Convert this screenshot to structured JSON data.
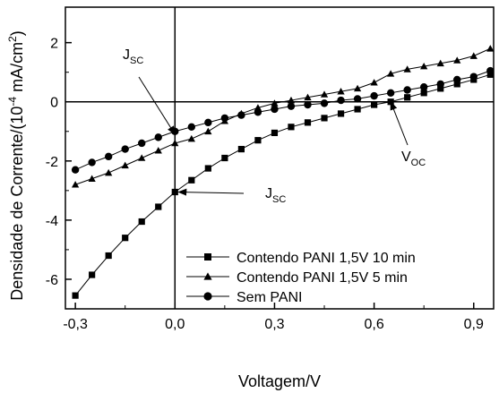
{
  "chart_data": {
    "type": "line",
    "xlabel": "Voltagem/V",
    "ylabel_parts": {
      "main": "Densidade de Corrente/(10",
      "exp": "-4",
      "unit": " mA/cm",
      "unit_exp": "2",
      "close": ")"
    },
    "xlim": [
      -0.33,
      0.96
    ],
    "ylim": [
      -7.0,
      3.2
    ],
    "x_ticks": [
      -0.3,
      0.0,
      0.3,
      0.6,
      0.9
    ],
    "x_tick_labels": [
      "-0,3",
      "0,0",
      "0,3",
      "0,6",
      "0,9"
    ],
    "y_ticks": [
      -6,
      -4,
      -2,
      0,
      2
    ],
    "y_tick_labels": [
      "-6",
      "-4",
      "-2",
      "0",
      "2"
    ],
    "legend_position": "bottom-right",
    "series": [
      {
        "name": "Contendo PANI 1,5V 10 min",
        "marker": "square",
        "color": "#000000",
        "x": [
          -0.3,
          -0.25,
          -0.2,
          -0.15,
          -0.1,
          -0.05,
          0.0,
          0.05,
          0.1,
          0.15,
          0.2,
          0.25,
          0.3,
          0.35,
          0.4,
          0.45,
          0.5,
          0.55,
          0.6,
          0.65,
          0.7,
          0.75,
          0.8,
          0.85,
          0.9,
          0.95
        ],
        "y": [
          -6.55,
          -5.85,
          -5.2,
          -4.6,
          -4.05,
          -3.55,
          -3.05,
          -2.65,
          -2.25,
          -1.9,
          -1.6,
          -1.3,
          -1.05,
          -0.85,
          -0.7,
          -0.55,
          -0.4,
          -0.25,
          -0.1,
          0.0,
          0.15,
          0.3,
          0.45,
          0.6,
          0.75,
          0.92
        ]
      },
      {
        "name": "Contendo PANI 1,5V 5 min",
        "marker": "triangle",
        "color": "#000000",
        "x": [
          -0.3,
          -0.25,
          -0.2,
          -0.15,
          -0.1,
          -0.05,
          0.0,
          0.05,
          0.1,
          0.15,
          0.2,
          0.25,
          0.3,
          0.35,
          0.4,
          0.45,
          0.5,
          0.55,
          0.6,
          0.65,
          0.7,
          0.75,
          0.8,
          0.85,
          0.9,
          0.95
        ],
        "y": [
          -2.8,
          -2.6,
          -2.4,
          -2.15,
          -1.9,
          -1.65,
          -1.4,
          -1.25,
          -1.0,
          -0.65,
          -0.4,
          -0.2,
          -0.05,
          0.05,
          0.15,
          0.25,
          0.35,
          0.45,
          0.65,
          0.95,
          1.1,
          1.2,
          1.3,
          1.4,
          1.55,
          1.8
        ]
      },
      {
        "name": "Sem PANI",
        "marker": "circle",
        "color": "#000000",
        "x": [
          -0.3,
          -0.25,
          -0.2,
          -0.15,
          -0.1,
          -0.05,
          0.0,
          0.05,
          0.1,
          0.15,
          0.2,
          0.25,
          0.3,
          0.35,
          0.4,
          0.45,
          0.5,
          0.55,
          0.6,
          0.65,
          0.7,
          0.75,
          0.8,
          0.85,
          0.9,
          0.95
        ],
        "y": [
          -2.3,
          -2.05,
          -1.85,
          -1.6,
          -1.4,
          -1.2,
          -1.0,
          -0.85,
          -0.7,
          -0.55,
          -0.45,
          -0.35,
          -0.25,
          -0.15,
          -0.1,
          -0.05,
          0.05,
          0.1,
          0.2,
          0.3,
          0.4,
          0.5,
          0.6,
          0.75,
          0.85,
          1.05
        ]
      }
    ],
    "annotations": [
      {
        "id": "jsc-top",
        "text": "J",
        "sub": "SC",
        "arrow_to": [
          0.0,
          -1.1
        ]
      },
      {
        "id": "jsc-bottom",
        "text": "J",
        "sub": "SC",
        "arrow_to": [
          0.0,
          -3.05
        ]
      },
      {
        "id": "voc",
        "text": "V",
        "sub": "OC",
        "arrow_to": [
          0.65,
          0.0
        ]
      }
    ]
  }
}
